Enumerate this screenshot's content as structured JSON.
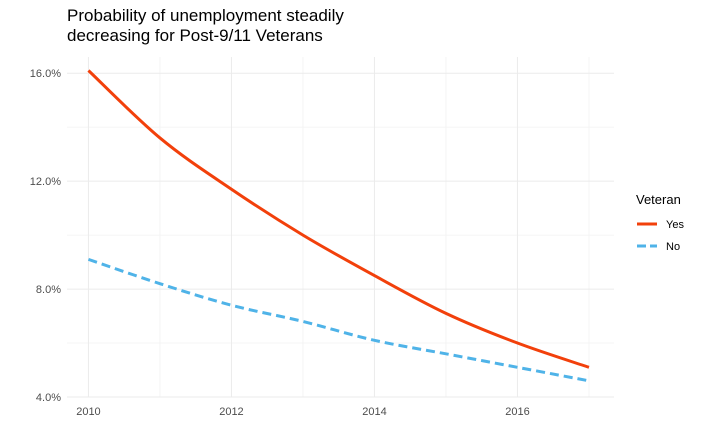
{
  "title_lines": [
    "Probability of unemployment steadily",
    "decreasing for Post-9/11 Veterans"
  ],
  "chart_data": {
    "type": "line",
    "title": "Probability of unemployment steadily decreasing for Post-9/11 Veterans",
    "xlabel": "",
    "ylabel": "",
    "x": [
      2010,
      2011,
      2012,
      2013,
      2014,
      2015,
      2016,
      2017
    ],
    "series": [
      {
        "name": "Yes",
        "values": [
          16.1,
          13.6,
          11.7,
          10.0,
          8.5,
          7.1,
          6.0,
          5.1
        ],
        "color": "#F2400B",
        "dash": "solid"
      },
      {
        "name": "No",
        "values": [
          9.1,
          8.2,
          7.4,
          6.8,
          6.1,
          5.6,
          5.1,
          4.6
        ],
        "color": "#4FB3E8",
        "dash": "dashed"
      }
    ],
    "xlim": [
      2009.7,
      2017.35
    ],
    "ylim": [
      4.0,
      16.6
    ],
    "x_ticks": [
      2010,
      2012,
      2014,
      2016
    ],
    "x_tick_labels": [
      "2010",
      "2012",
      "2014",
      "2016"
    ],
    "y_ticks": [
      4,
      8,
      12,
      16
    ],
    "y_tick_labels": [
      "4.0%",
      "8.0%",
      "12.0%",
      "16.0%"
    ],
    "grid": true,
    "legend": {
      "title": "Veteran",
      "position": "right"
    }
  }
}
